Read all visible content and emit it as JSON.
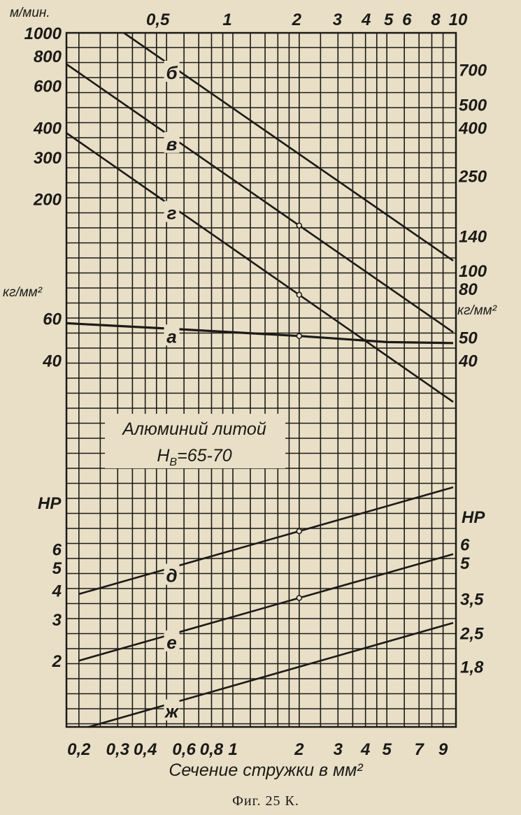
{
  "chart_data": {
    "type": "line",
    "scale": "log-log nomogram",
    "grid": true,
    "xlabel": "Сечение стружки в мм²",
    "caption": "Фиг. 25 К.",
    "annotation": {
      "line1": "Алюминий литой",
      "line2_main": "H",
      "line2_sub": "B",
      "line2_rest": "=65-70"
    },
    "xlim": [
      0.175,
      10
    ],
    "x_ticks_bottom": [
      {
        "v": 0.2,
        "t": "0,2"
      },
      {
        "v": 0.3,
        "t": "0,3"
      },
      {
        "v": 0.4,
        "t": "0,4"
      },
      {
        "v": 0.6,
        "t": "0,6"
      },
      {
        "v": 0.8,
        "t": "0,8"
      },
      {
        "v": 1,
        "t": "1"
      },
      {
        "v": 2,
        "t": "2"
      },
      {
        "v": 3,
        "t": "3"
      },
      {
        "v": 4,
        "t": "4"
      },
      {
        "v": 5,
        "t": "5"
      },
      {
        "v": 7,
        "t": "7"
      },
      {
        "v": 9,
        "t": "9"
      }
    ],
    "x_ticks_top": [
      {
        "v": 0.5,
        "t": "0,5"
      },
      {
        "v": 1,
        "t": "1"
      },
      {
        "v": 2,
        "t": "2"
      },
      {
        "v": 3,
        "t": "3"
      },
      {
        "v": 4,
        "t": "4"
      },
      {
        "v": 5,
        "t": "5"
      },
      {
        "v": 6,
        "t": "6"
      },
      {
        "v": 8,
        "t": "8"
      },
      {
        "v": 10,
        "t": "10"
      }
    ],
    "axes": {
      "speed_unit": "м/мин.",
      "stress_unit_left": "кг/мм²",
      "stress_unit_right": "кг/мм²",
      "power_unit_left": "HP",
      "power_unit_right": "HP",
      "speed_left_ticks": [
        1000,
        800,
        600,
        400,
        300,
        200
      ],
      "speed_right_ticks": [
        700,
        500,
        400,
        250,
        140,
        100
      ],
      "stress_left_ticks": [
        60,
        40
      ],
      "stress_right_ticks": [
        80,
        50,
        40
      ],
      "power_left_ticks": [
        6,
        5,
        4,
        3,
        2
      ],
      "power_right_ticks": [
        {
          "v": 6,
          "t": "6"
        },
        {
          "v": 5,
          "t": "5"
        },
        {
          "v": 3.5,
          "t": "3,5"
        },
        {
          "v": 2.5,
          "t": "2,5"
        },
        {
          "v": 1.8,
          "t": "1,8"
        }
      ]
    },
    "series": [
      {
        "name": "б",
        "quantity": "speed",
        "unit": "м/мин.",
        "points": [
          [
            0.32,
            1000
          ],
          [
            10,
            110
          ]
        ],
        "label_at": 0.52
      },
      {
        "name": "в",
        "quantity": "speed",
        "unit": "м/мин.",
        "points": [
          [
            0.175,
            740
          ],
          [
            10,
            55
          ]
        ],
        "label_at": 0.52
      },
      {
        "name": "г",
        "quantity": "speed",
        "unit": "м/мин.",
        "points": [
          [
            0.175,
            380
          ],
          [
            10,
            28
          ]
        ],
        "label_at": 0.52
      },
      {
        "name": "а",
        "quantity": "stress",
        "unit": "кг/мм²",
        "points": [
          [
            0.175,
            60
          ],
          [
            0.5,
            57
          ],
          [
            2,
            53
          ],
          [
            5,
            50
          ],
          [
            10,
            49.5
          ]
        ],
        "label_at": 0.52
      },
      {
        "name": "д",
        "quantity": "power",
        "unit": "HP",
        "points": [
          [
            0.2,
            3.85
          ],
          [
            10,
            11
          ]
        ],
        "label_at": 0.52
      },
      {
        "name": "е",
        "quantity": "power",
        "unit": "HP",
        "points": [
          [
            0.2,
            2.0
          ],
          [
            10,
            5.7
          ]
        ],
        "label_at": 0.52
      },
      {
        "name": "ж",
        "quantity": "power",
        "unit": "HP",
        "points": [
          [
            0.22,
            1.04
          ],
          [
            10,
            2.9
          ]
        ],
        "label_at": 0.52
      }
    ],
    "marked_points_at_x": 2,
    "colors": {
      "paper": "#e8dfc6",
      "ink": "#1c1a17"
    }
  }
}
